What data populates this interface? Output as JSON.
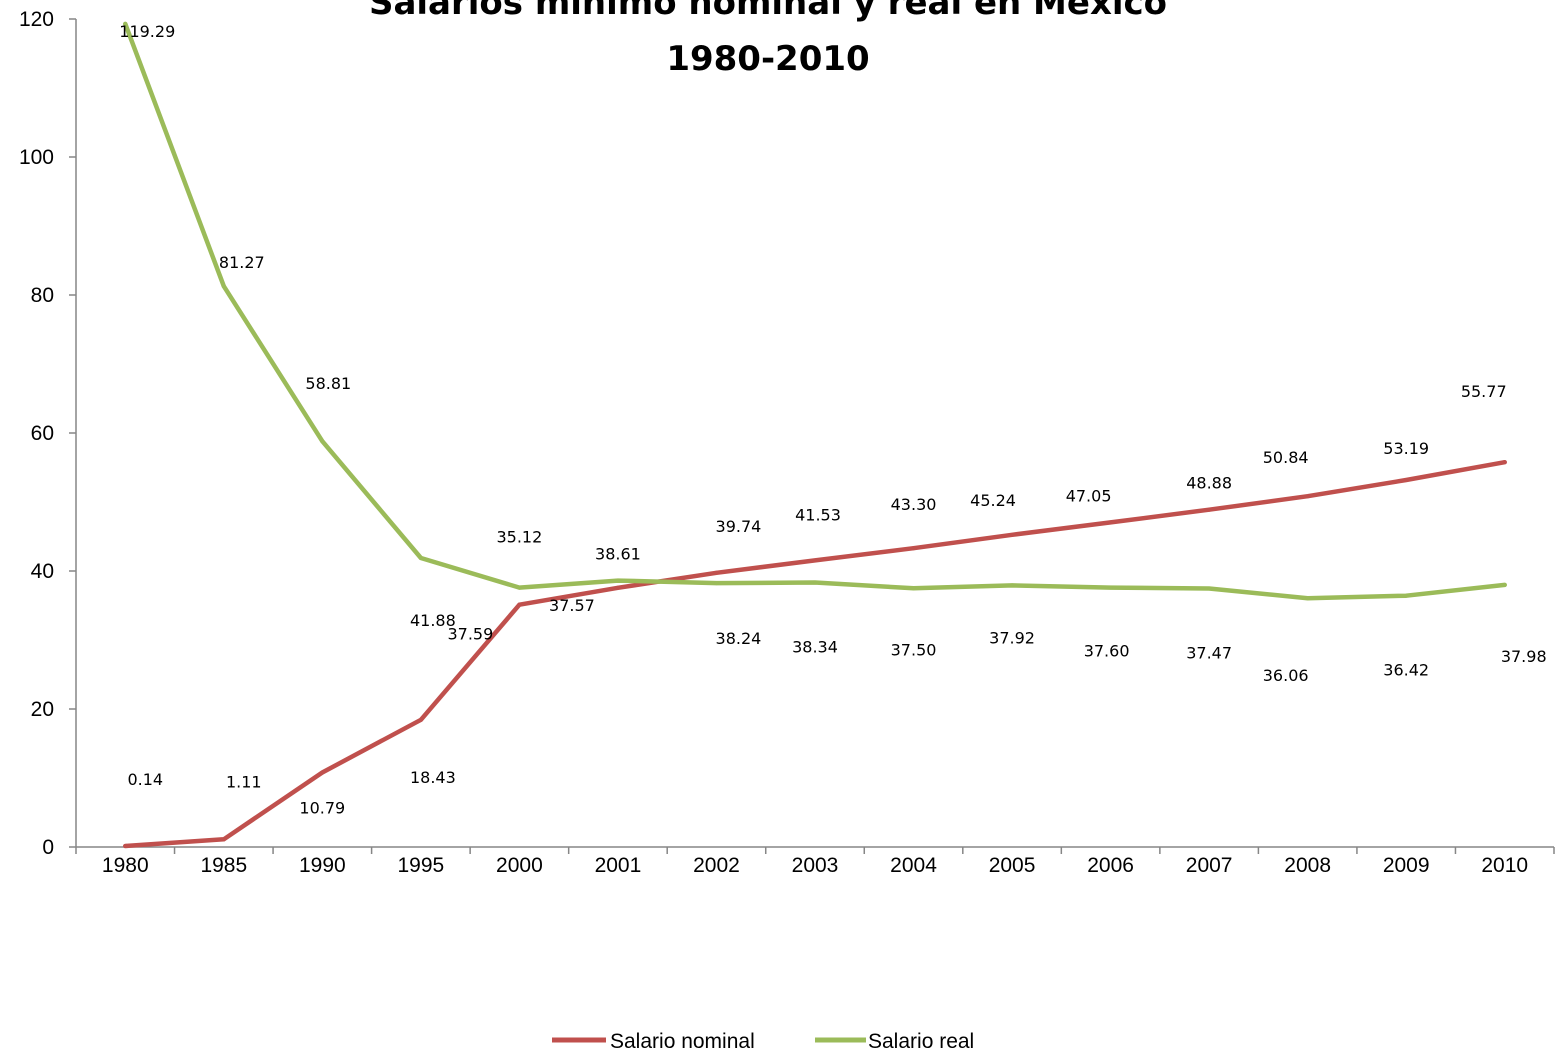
{
  "chart_data": {
    "type": "line",
    "title": "Salarios mínimo nominal y real  en México",
    "subtitle": "1980-2010",
    "categories": [
      "1980",
      "1985",
      "1990",
      "1995",
      "2000",
      "2001",
      "2002",
      "2003",
      "2004",
      "2005",
      "2006",
      "2007",
      "2008",
      "2009",
      "2010"
    ],
    "ylim": [
      0,
      120
    ],
    "yticks": [
      0,
      20,
      40,
      60,
      80,
      100,
      120
    ],
    "legend_position": "bottom",
    "grid": false,
    "series": [
      {
        "name": "Salario nominal",
        "color": "#c0504d",
        "values": [
          0.14,
          1.11,
          10.79,
          18.43,
          35.12,
          37.57,
          39.74,
          41.53,
          43.3,
          45.24,
          47.05,
          48.88,
          50.84,
          53.19,
          55.77
        ],
        "labels": [
          "0.14",
          "1.11",
          "10.79",
          "18.43",
          "35.12",
          "37.57",
          "39.74",
          "41.53",
          "43.30",
          "45.24",
          "47.05",
          "48.88",
          "50.84",
          "53.19",
          "55.77"
        ]
      },
      {
        "name": "Salario real",
        "color": "#9bbb59",
        "values": [
          119.29,
          81.27,
          58.81,
          41.88,
          37.59,
          38.61,
          38.24,
          38.34,
          37.5,
          37.92,
          37.6,
          37.47,
          36.06,
          36.42,
          37.98
        ],
        "labels": [
          "119.29",
          "81.27",
          "58.81",
          "41.88",
          "37.59",
          "38.61",
          "38.24",
          "38.34",
          "37.50",
          "37.92",
          "37.60",
          "37.47",
          "36.06",
          "36.42",
          "37.98"
        ]
      }
    ]
  }
}
